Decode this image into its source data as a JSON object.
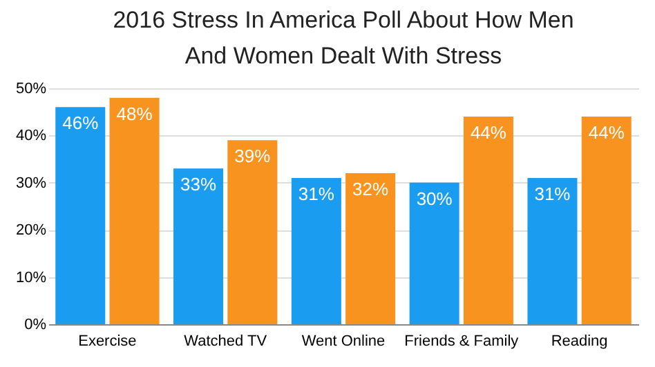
{
  "chart_data": {
    "type": "bar",
    "title": "2016 Stress In America Poll About How Men And Women Dealt With Stress",
    "categories": [
      "Exercise",
      "Watched TV",
      "Went Online",
      "Friends & Family",
      "Reading"
    ],
    "series": [
      {
        "color": "#1a9df0",
        "values": [
          46,
          33,
          31,
          30,
          31
        ],
        "value_labels": [
          "46%",
          "33%",
          "31%",
          "30%",
          "31%"
        ]
      },
      {
        "color": "#f7931e",
        "values": [
          48,
          39,
          32,
          44,
          44
        ],
        "value_labels": [
          "48%",
          "39%",
          "32%",
          "44%",
          "44%"
        ]
      }
    ],
    "ylim": [
      0,
      50
    ],
    "yticks": [
      {
        "value": 0,
        "label": "0%"
      },
      {
        "value": 10,
        "label": "10%"
      },
      {
        "value": 20,
        "label": "20%"
      },
      {
        "value": 30,
        "label": "30%"
      },
      {
        "value": 40,
        "label": "40%"
      },
      {
        "value": 50,
        "label": "50%"
      }
    ],
    "grid": "y"
  }
}
